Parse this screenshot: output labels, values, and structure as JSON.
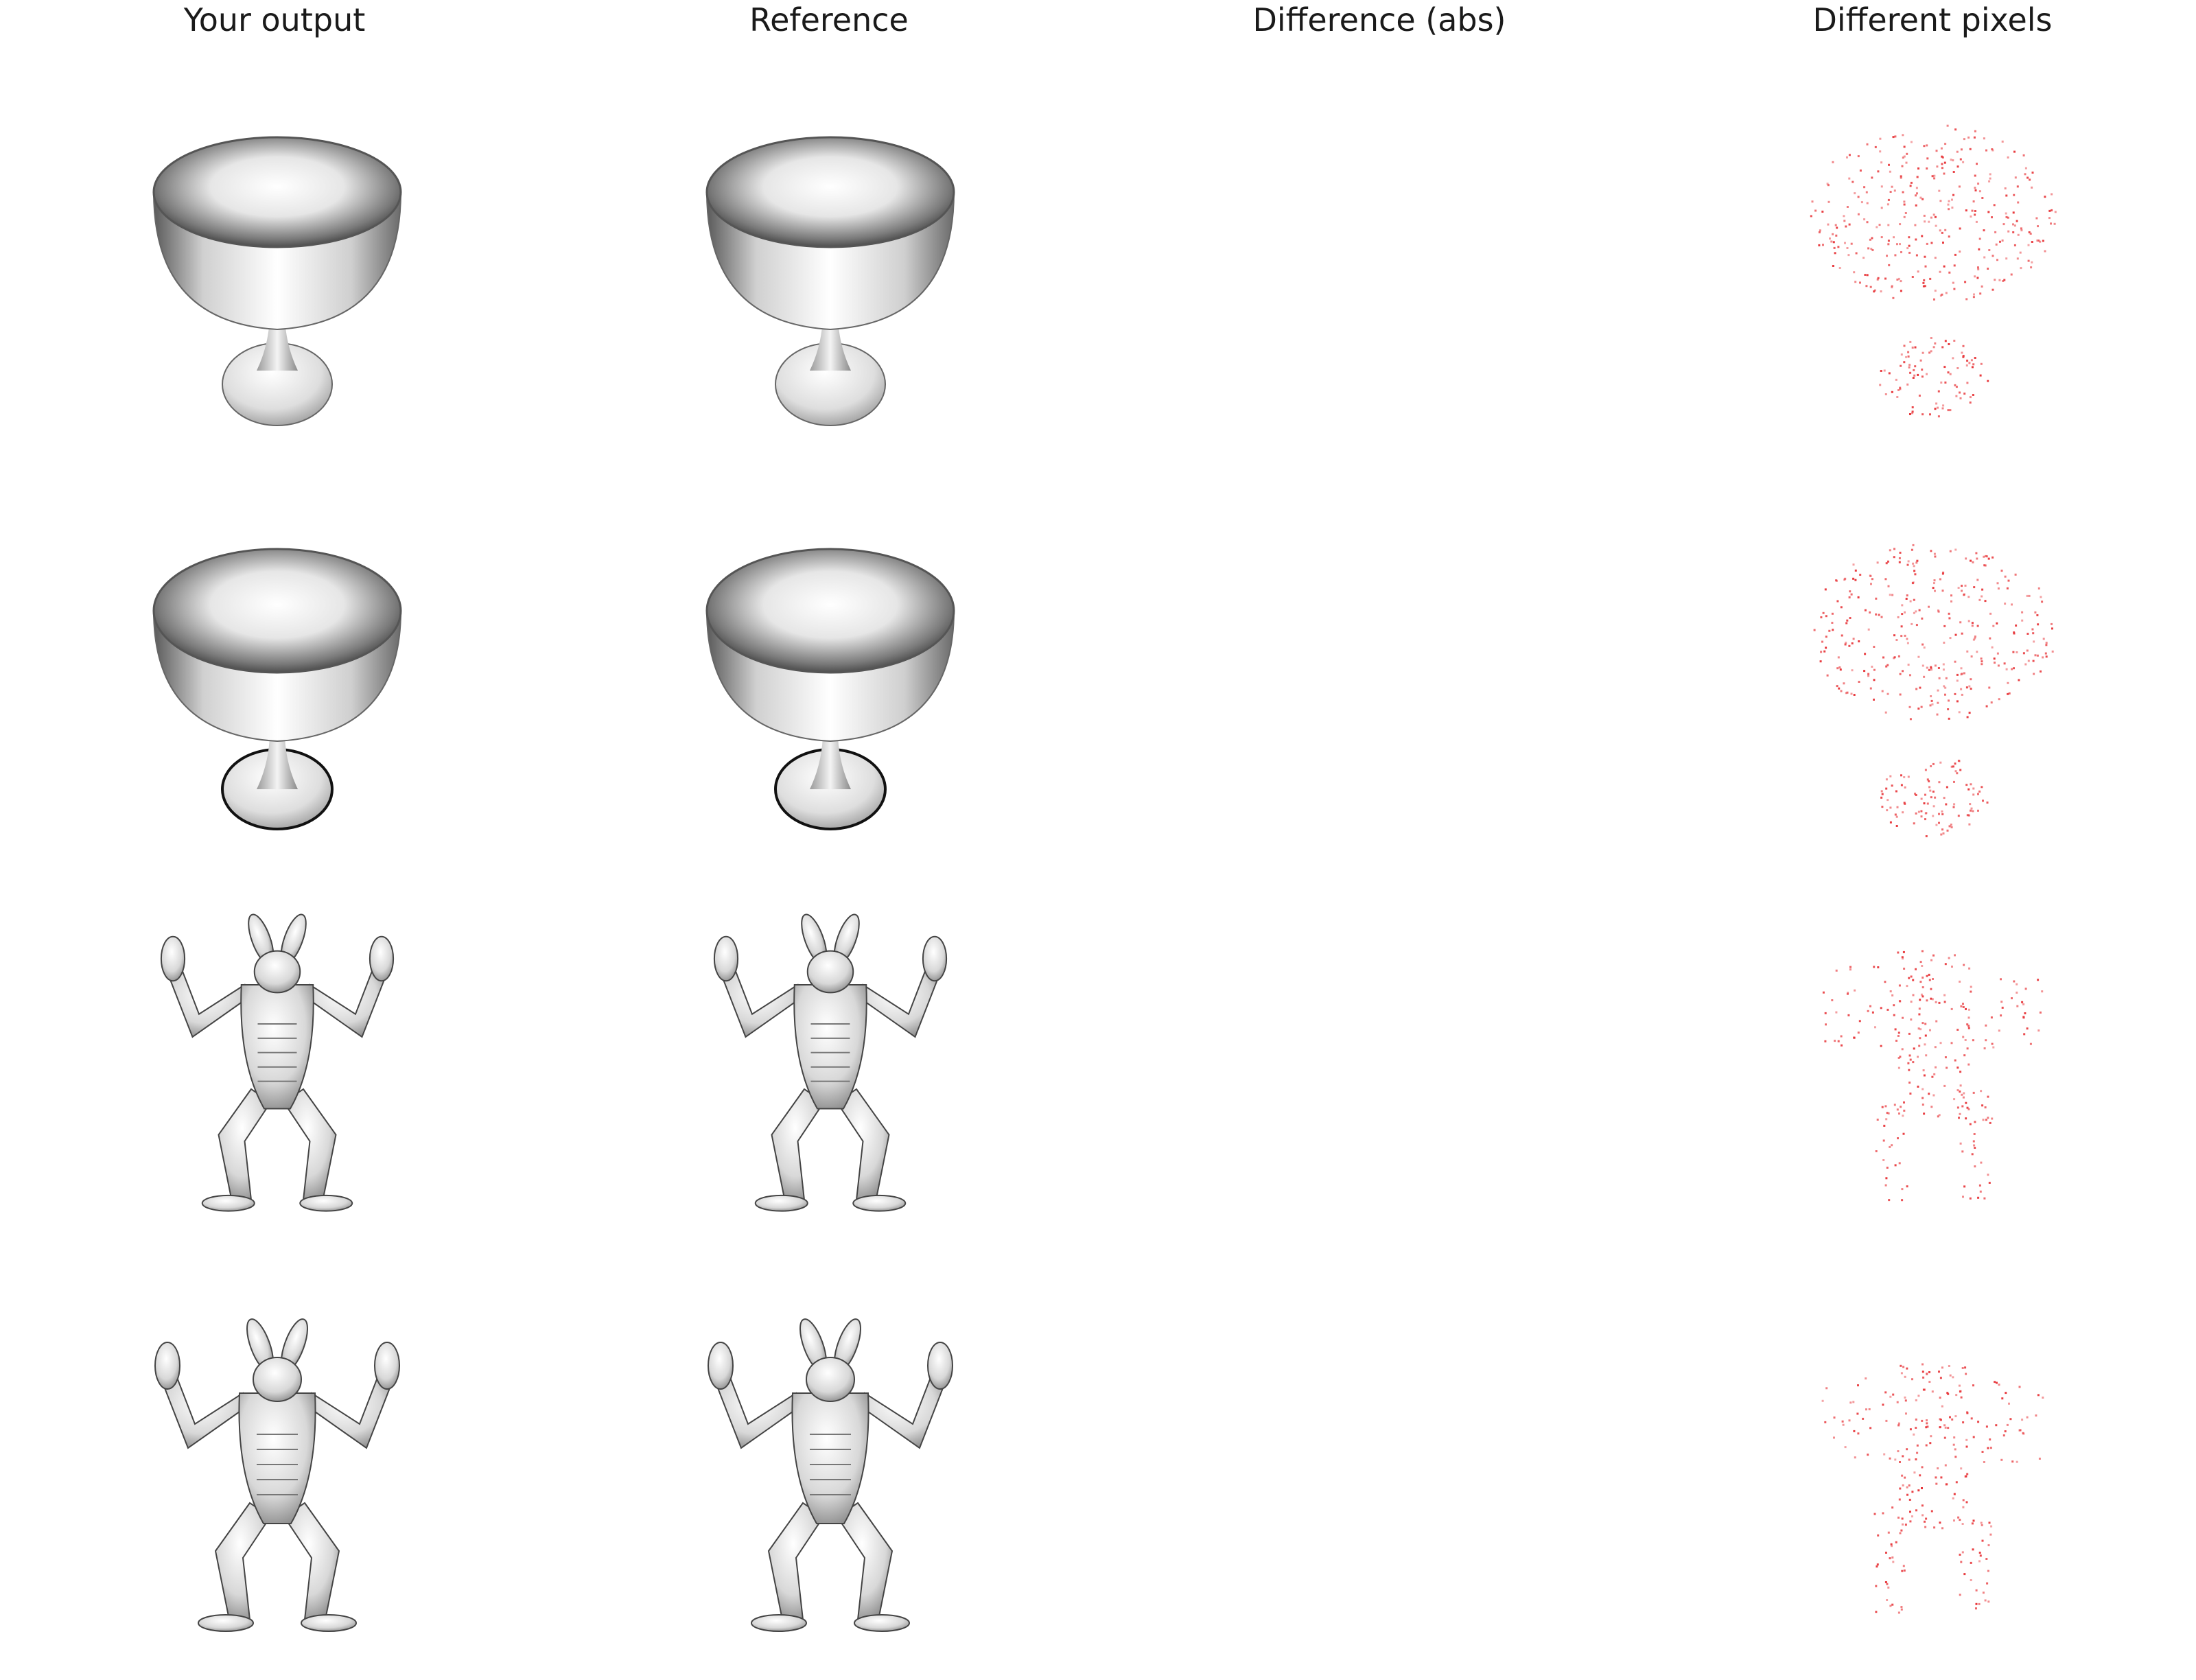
{
  "columns": [
    "Your output",
    "Reference",
    "Difference (abs)",
    "Different pixels"
  ],
  "rows": [
    {
      "model": "goblet",
      "view": "elevated"
    },
    {
      "model": "goblet",
      "view": "overhead"
    },
    {
      "model": "armadillo",
      "view": "front"
    },
    {
      "model": "armadillo",
      "view": "front-alt"
    }
  ],
  "colors": {
    "background": "#ffffff",
    "text": "#1a1a1a",
    "diff_highlight": "#e8383c",
    "shade_dark": "#3a3a3a",
    "shade_light": "#f6f6f6"
  }
}
